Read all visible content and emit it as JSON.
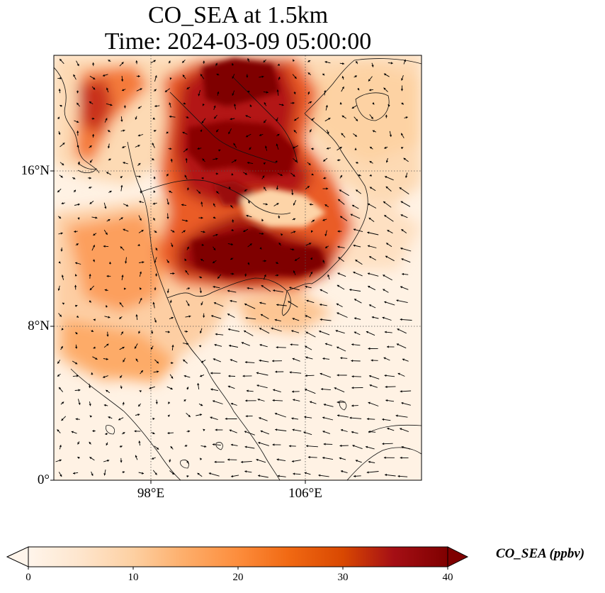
{
  "title_line1": "CO_SEA at 1.5km",
  "title_line2": "Time: 2024-03-09 05:00:00",
  "map": {
    "type": "heatmap",
    "variable": "CO_SEA",
    "level": "1.5km",
    "lat_ticks": [
      "0°",
      "8°N",
      "16°N"
    ],
    "lon_ticks": [
      "98°E",
      "106°E"
    ],
    "gridlines": "dotted",
    "wind_vectors": true
  },
  "colorbar": {
    "label": "CO_SEA (ppbv)",
    "ticks": [
      "0",
      "10",
      "20",
      "30",
      "40"
    ],
    "min": 0,
    "max": 40,
    "extend": "both",
    "cmap": [
      "#fff5eb",
      "#fee6ce",
      "#fdd0a2",
      "#fdae6b",
      "#fd8d3c",
      "#f16913",
      "#d94801",
      "#a50f15",
      "#7f0000"
    ]
  }
}
